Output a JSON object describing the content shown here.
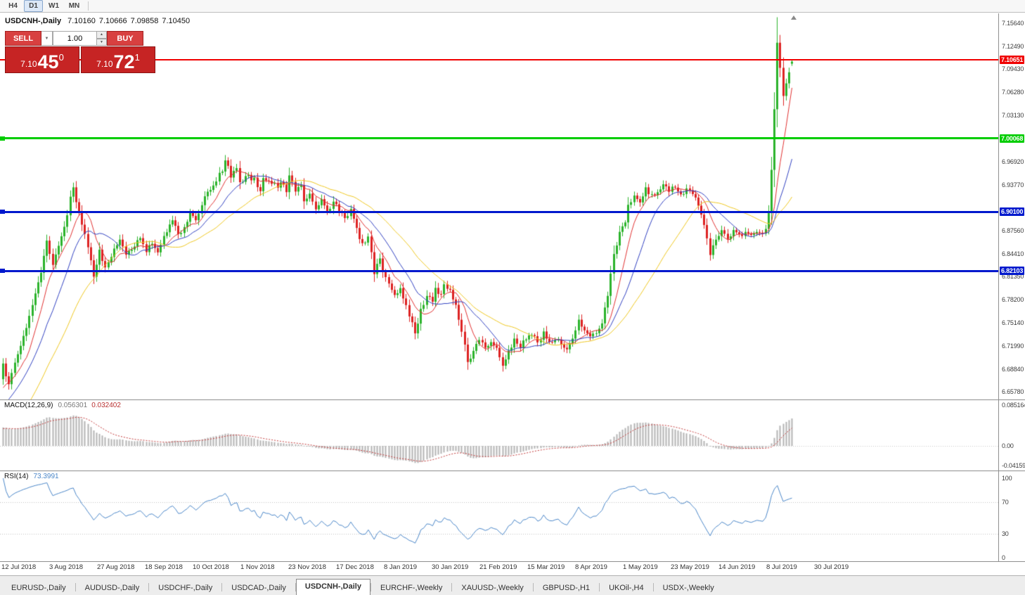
{
  "toolbar": {
    "timeframes": [
      {
        "label": "H4",
        "active": false
      },
      {
        "label": "D1",
        "active": true
      },
      {
        "label": "W1",
        "active": false
      },
      {
        "label": "MN",
        "active": false
      }
    ]
  },
  "chart": {
    "symbol_title": "USDCNH-,Daily",
    "open": "7.10160",
    "high": "7.10666",
    "low": "7.09858",
    "close": "7.10450"
  },
  "one_click": {
    "sell_label": "SELL",
    "buy_label": "BUY",
    "volume": "1.00",
    "sell_price_small": "7.10",
    "sell_price_big": "45",
    "sell_price_sup": "0",
    "buy_price_small": "7.10",
    "buy_price_big": "72",
    "buy_price_sup": "1"
  },
  "price_axis_ticks": [
    {
      "label": "7.15640",
      "value": 7.1564
    },
    {
      "label": "7.12490",
      "value": 7.1249
    },
    {
      "label": "7.09430",
      "value": 7.0943
    },
    {
      "label": "7.06280",
      "value": 7.0628
    },
    {
      "label": "7.03130",
      "value": 7.0313
    },
    {
      "label": "6.96920",
      "value": 6.9692
    },
    {
      "label": "6.93770",
      "value": 6.9377
    },
    {
      "label": "6.87560",
      "value": 6.8756
    },
    {
      "label": "6.84410",
      "value": 6.8441
    },
    {
      "label": "6.81350",
      "value": 6.8135
    },
    {
      "label": "6.78200",
      "value": 6.782
    },
    {
      "label": "6.75140",
      "value": 6.7514
    },
    {
      "label": "6.71990",
      "value": 6.7199
    },
    {
      "label": "6.68840",
      "value": 6.6884
    },
    {
      "label": "6.65780",
      "value": 6.6578
    }
  ],
  "hlines": [
    {
      "label": "7.10651",
      "value": 7.10651,
      "color": "#f00000",
      "thickness": 2,
      "left_marker": false
    },
    {
      "label": "7.00068",
      "value": 7.00068,
      "color": "#00cd00",
      "thickness": 3,
      "left_marker": true
    },
    {
      "label": "6.90100",
      "value": 6.901,
      "color": "#0019cd",
      "thickness": 3,
      "left_marker": true
    },
    {
      "label": "6.82103",
      "value": 6.82103,
      "color": "#0019cd",
      "thickness": 3,
      "left_marker": true
    }
  ],
  "macd_pane": {
    "title": "MACD(12,26,9)",
    "main_value": "0.056301",
    "signal_value": "0.032402",
    "axis_ticks": [
      {
        "label": "0.085164",
        "value": 0.085164
      },
      {
        "label": "0.00",
        "value": 0
      },
      {
        "label": "-0.04159",
        "value": -0.04159
      }
    ]
  },
  "rsi_pane": {
    "title": "RSI(14)",
    "value": "73.3991",
    "axis_ticks": [
      {
        "label": "100",
        "value": 100
      },
      {
        "label": "70",
        "value": 70
      },
      {
        "label": "30",
        "value": 30
      },
      {
        "label": "0",
        "value": 0
      }
    ],
    "levels": [
      70,
      30
    ]
  },
  "date_axis": [
    "12 Jul 2018",
    "3 Aug 2018",
    "27 Aug 2018",
    "18 Sep 2018",
    "10 Oct 2018",
    "1 Nov 2018",
    "23 Nov 2018",
    "17 Dec 2018",
    "8 Jan 2019",
    "30 Jan 2019",
    "21 Feb 2019",
    "15 Mar 2019",
    "8 Apr 2019",
    "1 May 2019",
    "23 May 2019",
    "14 Jun 2019",
    "8 Jul 2019",
    "30 Jul 2019"
  ],
  "tabs": [
    {
      "label": "EURUSD-,Daily",
      "active": false
    },
    {
      "label": "AUDUSD-,Daily",
      "active": false
    },
    {
      "label": "USDCHF-,Daily",
      "active": false
    },
    {
      "label": "USDCAD-,Daily",
      "active": false
    },
    {
      "label": "USDCNH-,Daily",
      "active": true
    },
    {
      "label": "EURCHF-,Weekly",
      "active": false
    },
    {
      "label": "XAUUSD-,Weekly",
      "active": false
    },
    {
      "label": "GBPUSD-,H1",
      "active": false
    },
    {
      "label": "UKOil-,H4",
      "active": false
    },
    {
      "label": "USDX-,Weekly",
      "active": false
    }
  ],
  "chart_data": {
    "type": "candlestick",
    "symbol": "USDCNH-",
    "timeframe": "Daily",
    "visible_price_range": [
      6.6578,
      7.1564
    ],
    "num_candles": 271,
    "seed": 20190823,
    "anchors_index": [
      0,
      2,
      4,
      6,
      9,
      13,
      15,
      17,
      19,
      21,
      23,
      24,
      26,
      28,
      31,
      33,
      35,
      37,
      40,
      42,
      44,
      47,
      49,
      51,
      53,
      55,
      58,
      60,
      62,
      64,
      66,
      68,
      70,
      73,
      75,
      76,
      78,
      80,
      81,
      83,
      86,
      88,
      89,
      92,
      94,
      95,
      97,
      98,
      100,
      102,
      103,
      105,
      107,
      109,
      111,
      113,
      115,
      117,
      119,
      121,
      123,
      125,
      127,
      129,
      131,
      133,
      134,
      136,
      138,
      140,
      141,
      143,
      145,
      147,
      148,
      150,
      151,
      153,
      155,
      157,
      159,
      161,
      163,
      165,
      167,
      169,
      171,
      173,
      175,
      177,
      179,
      181,
      183,
      185,
      187,
      189,
      191,
      193,
      195,
      197,
      199,
      201,
      203,
      205,
      207,
      209,
      211,
      213,
      214,
      216,
      218,
      220,
      222,
      224,
      226,
      228,
      230,
      232,
      234,
      236,
      238,
      240,
      242,
      244,
      246,
      248,
      250,
      252,
      254,
      256,
      258,
      260,
      261,
      262,
      263,
      264,
      265,
      266,
      267,
      268,
      269,
      270
    ],
    "anchors_close": [
      6.695,
      6.665,
      6.7,
      6.72,
      6.76,
      6.82,
      6.86,
      6.832,
      6.858,
      6.878,
      6.92,
      6.935,
      6.9,
      6.872,
      6.815,
      6.848,
      6.828,
      6.842,
      6.862,
      6.84,
      6.852,
      6.868,
      6.85,
      6.858,
      6.844,
      6.868,
      6.888,
      6.872,
      6.88,
      6.898,
      6.888,
      6.912,
      6.928,
      6.944,
      6.958,
      6.972,
      6.95,
      6.962,
      6.938,
      6.952,
      6.944,
      6.93,
      6.945,
      6.942,
      6.935,
      6.94,
      6.93,
      6.948,
      6.932,
      6.938,
      6.912,
      6.924,
      6.906,
      6.916,
      6.9,
      6.912,
      6.905,
      6.895,
      6.902,
      6.876,
      6.856,
      6.868,
      6.82,
      6.836,
      6.81,
      6.798,
      6.788,
      6.8,
      6.772,
      6.752,
      6.735,
      6.768,
      6.788,
      6.78,
      6.798,
      6.788,
      6.8,
      6.796,
      6.775,
      6.74,
      6.7,
      6.712,
      6.728,
      6.716,
      6.724,
      6.718,
      6.695,
      6.714,
      6.728,
      6.72,
      6.73,
      6.736,
      6.724,
      6.736,
      6.722,
      6.73,
      6.722,
      6.712,
      6.732,
      6.752,
      6.742,
      6.73,
      6.74,
      6.748,
      6.79,
      6.845,
      6.872,
      6.89,
      6.908,
      6.925,
      6.915,
      6.932,
      6.922,
      6.93,
      6.94,
      6.928,
      6.936,
      6.922,
      6.93,
      6.926,
      6.91,
      6.882,
      6.845,
      6.864,
      6.874,
      6.864,
      6.874,
      6.868,
      6.874,
      6.87,
      6.874,
      6.872,
      6.878,
      6.9,
      6.958,
      7.04,
      7.13,
      7.096,
      7.058,
      7.075,
      7.09,
      7.1045
    ],
    "last_candle": {
      "open": 7.1016,
      "high": 7.10666,
      "low": 7.09858,
      "close": 7.1045
    },
    "up_color": "#2bb32b",
    "down_color": "#dd2222",
    "moving_averages": [
      {
        "period": 8,
        "color": "#e03030"
      },
      {
        "period": 16,
        "color": "#3040c0"
      },
      {
        "period": 32,
        "color": "#eec720"
      }
    ],
    "macd": {
      "fast": 12,
      "slow": 26,
      "signal": 9,
      "histogram_color": "#b4b4b4",
      "signal_color": "#c03636",
      "current_main": 0.056301,
      "current_signal": 0.032402
    },
    "rsi": {
      "period": 14,
      "color": "#4a86c8",
      "current": 73.3991
    }
  }
}
